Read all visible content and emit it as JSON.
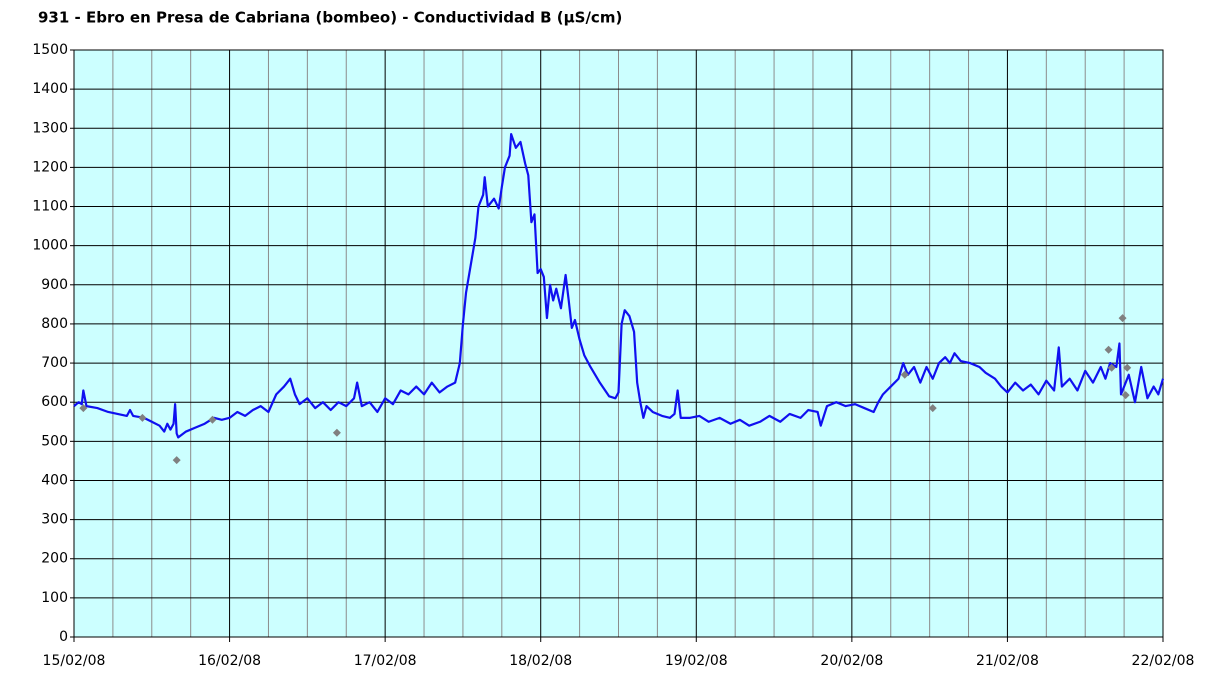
{
  "chart_data": {
    "type": "line",
    "title": "931 - Ebro en Presa de Cabriana (bombeo) - Conductividad B (µS/cm)",
    "xlim": [
      0,
      7
    ],
    "xticks": [
      {
        "value": 0,
        "label": "15/02/08"
      },
      {
        "value": 1,
        "label": "16/02/08"
      },
      {
        "value": 2,
        "label": "17/02/08"
      },
      {
        "value": 3,
        "label": "18/02/08"
      },
      {
        "value": 4,
        "label": "19/02/08"
      },
      {
        "value": 5,
        "label": "20/02/08"
      },
      {
        "value": 6,
        "label": "21/02/08"
      },
      {
        "value": 7,
        "label": "22/02/08"
      }
    ],
    "ylim": [
      0,
      1500
    ],
    "yticks": [
      0,
      100,
      200,
      300,
      400,
      500,
      600,
      700,
      800,
      900,
      1000,
      1100,
      1200,
      1300,
      1400,
      1500
    ],
    "grid": true,
    "series": [
      {
        "type": "line",
        "color": "#1010f0",
        "x": [
          0.0,
          0.03,
          0.05,
          0.06,
          0.08,
          0.15,
          0.22,
          0.28,
          0.34,
          0.36,
          0.38,
          0.45,
          0.5,
          0.55,
          0.58,
          0.6,
          0.62,
          0.64,
          0.65,
          0.66,
          0.67,
          0.72,
          0.78,
          0.84,
          0.9,
          0.95,
          1.0,
          1.05,
          1.1,
          1.15,
          1.2,
          1.25,
          1.3,
          1.35,
          1.39,
          1.42,
          1.45,
          1.5,
          1.55,
          1.6,
          1.65,
          1.7,
          1.75,
          1.8,
          1.82,
          1.85,
          1.9,
          1.95,
          2.0,
          2.05,
          2.1,
          2.15,
          2.2,
          2.25,
          2.3,
          2.35,
          2.4,
          2.45,
          2.48,
          2.5,
          2.52,
          2.55,
          2.58,
          2.6,
          2.63,
          2.64,
          2.66,
          2.7,
          2.73,
          2.75,
          2.77,
          2.8,
          2.81,
          2.84,
          2.87,
          2.9,
          2.92,
          2.94,
          2.96,
          2.98,
          3.0,
          3.02,
          3.04,
          3.06,
          3.08,
          3.1,
          3.13,
          3.16,
          3.18,
          3.2,
          3.22,
          3.25,
          3.28,
          3.32,
          3.38,
          3.44,
          3.48,
          3.5,
          3.52,
          3.54,
          3.57,
          3.6,
          3.62,
          3.64,
          3.66,
          3.68,
          3.72,
          3.78,
          3.83,
          3.86,
          3.88,
          3.9,
          3.96,
          4.02,
          4.08,
          4.15,
          4.22,
          4.28,
          4.34,
          4.41,
          4.47,
          4.54,
          4.6,
          4.67,
          4.72,
          4.78,
          4.8,
          4.84,
          4.9,
          4.96,
          5.02,
          5.08,
          5.14,
          5.17,
          5.2,
          5.25,
          5.3,
          5.33,
          5.36,
          5.4,
          5.44,
          5.48,
          5.52,
          5.56,
          5.6,
          5.63,
          5.66,
          5.7,
          5.76,
          5.82,
          5.86,
          5.92,
          5.96,
          6.0,
          6.05,
          6.1,
          6.15,
          6.2,
          6.25,
          6.3,
          6.33,
          6.35,
          6.4,
          6.45,
          6.5,
          6.55,
          6.6,
          6.63,
          6.66,
          6.7,
          6.72,
          6.73,
          6.78,
          6.82,
          6.86,
          6.9,
          6.94,
          6.97,
          7.0
        ],
        "values": [
          590,
          600,
          595,
          630,
          590,
          585,
          575,
          570,
          565,
          580,
          565,
          560,
          550,
          540,
          525,
          545,
          530,
          545,
          595,
          520,
          510,
          525,
          535,
          545,
          560,
          555,
          560,
          575,
          565,
          580,
          590,
          575,
          620,
          640,
          660,
          620,
          595,
          610,
          585,
          600,
          580,
          600,
          590,
          610,
          650,
          590,
          600,
          575,
          610,
          595,
          630,
          620,
          640,
          620,
          650,
          625,
          640,
          650,
          700,
          800,
          880,
          950,
          1020,
          1100,
          1130,
          1175,
          1100,
          1120,
          1095,
          1150,
          1200,
          1230,
          1285,
          1250,
          1265,
          1210,
          1180,
          1060,
          1080,
          930,
          940,
          920,
          815,
          900,
          860,
          890,
          840,
          925,
          860,
          790,
          810,
          760,
          720,
          690,
          650,
          615,
          610,
          625,
          800,
          835,
          820,
          780,
          650,
          600,
          560,
          590,
          575,
          565,
          560,
          570,
          630,
          560,
          560,
          565,
          550,
          560,
          545,
          555,
          540,
          550,
          565,
          550,
          570,
          560,
          580,
          575,
          540,
          590,
          600,
          590,
          595,
          585,
          575,
          600,
          620,
          640,
          660,
          700,
          670,
          690,
          650,
          690,
          660,
          700,
          715,
          700,
          725,
          705,
          700,
          690,
          675,
          660,
          640,
          625,
          650,
          630,
          645,
          620,
          655,
          630,
          740,
          640,
          660,
          630,
          680,
          650,
          690,
          660,
          700,
          690,
          750,
          620,
          670,
          600,
          690,
          610,
          640,
          620,
          660
        ]
      },
      {
        "type": "scatter",
        "color": "#808080",
        "x": [
          0.06,
          0.44,
          0.66,
          0.89,
          1.69,
          5.34,
          5.52,
          6.65,
          6.67,
          6.74,
          6.76,
          6.77
        ],
        "values": [
          585,
          560,
          452,
          555,
          522,
          670,
          585,
          734,
          688,
          815,
          618,
          688
        ]
      }
    ]
  }
}
